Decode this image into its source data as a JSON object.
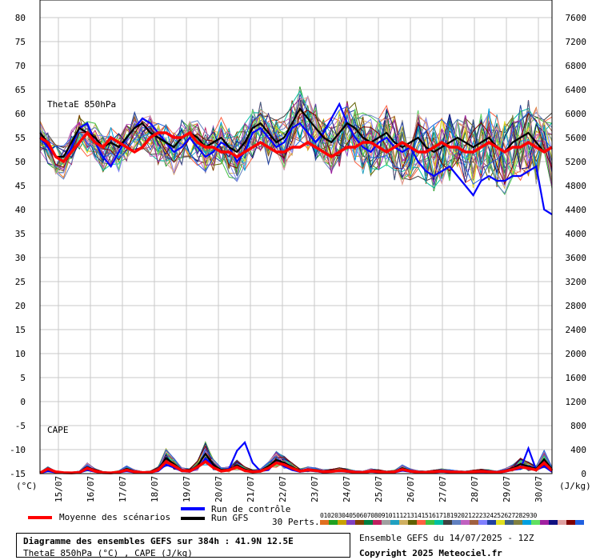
{
  "chart_data": {
    "type": "line",
    "title": "Diagramme des ensembles GEFS sur 384h : 41.9N 12.5E",
    "subtitle": "ThetaE 850hPa (°C) , CAPE (J/kg)",
    "left_axis": {
      "ticks": [
        "80",
        "75",
        "70",
        "65",
        "60",
        "55",
        "50",
        "45",
        "40",
        "35",
        "30",
        "25",
        "20",
        "15",
        "10",
        "5",
        "0",
        "-5",
        "-10",
        "-15"
      ],
      "ylim": [
        -15,
        80
      ],
      "unit_label": "(°C)"
    },
    "right_axis": {
      "ticks": [
        "7600",
        "7200",
        "6800",
        "6400",
        "6000",
        "5600",
        "5200",
        "4800",
        "4400",
        "4000",
        "3600",
        "3200",
        "2800",
        "2400",
        "2000",
        "1600",
        "1200",
        "800",
        "400",
        "0"
      ],
      "ylim": [
        0,
        7600
      ],
      "unit_label": "(J/kg)"
    },
    "x_ticks": [
      "15/07",
      "16/07",
      "17/07",
      "18/07",
      "19/07",
      "20/07",
      "21/07",
      "22/07",
      "23/07",
      "24/07",
      "25/07",
      "26/07",
      "27/07",
      "28/07",
      "29/07",
      "30/07"
    ],
    "x_step_hours": 6,
    "panel_labels": {
      "thetae": "ThetaE 850hPa",
      "cape": "CAPE"
    },
    "series": [
      {
        "name": "Moyenne des scénarios",
        "color": "#ff0000",
        "thetae": [
          55,
          54,
          51,
          50,
          52,
          54,
          56,
          54,
          53,
          55,
          54,
          53,
          52,
          53,
          55,
          56,
          56,
          55,
          55,
          56,
          54,
          53,
          53,
          52,
          52,
          51,
          52,
          53,
          54,
          53,
          52,
          52,
          53,
          53,
          54,
          53,
          52,
          51,
          52,
          53,
          53,
          54,
          54,
          53,
          52,
          53,
          54,
          53,
          52,
          52,
          53,
          54,
          53,
          53,
          52,
          52,
          53,
          54,
          53,
          52,
          53,
          53,
          54,
          53,
          52,
          53
        ],
        "cape": [
          10,
          80,
          30,
          15,
          12,
          20,
          90,
          40,
          15,
          12,
          25,
          60,
          30,
          18,
          20,
          60,
          200,
          130,
          50,
          40,
          110,
          200,
          100,
          40,
          60,
          110,
          50,
          30,
          40,
          90,
          180,
          150,
          90,
          40,
          60,
          50,
          30,
          35,
          50,
          40,
          25,
          20,
          40,
          30,
          20,
          30,
          70,
          40,
          25,
          20,
          30,
          40,
          30,
          25,
          20,
          30,
          35,
          30,
          20,
          40,
          70,
          110,
          90,
          60,
          180,
          50
        ]
      },
      {
        "name": "Run de contrôle",
        "color": "#0000ff",
        "thetae": [
          55,
          53,
          51,
          50,
          53,
          57,
          58,
          54,
          51,
          49,
          52,
          55,
          57,
          59,
          58,
          56,
          54,
          52,
          53,
          55,
          53,
          51,
          52,
          54,
          53,
          50,
          52,
          56,
          57,
          55,
          53,
          54,
          57,
          58,
          56,
          54,
          56,
          59,
          62,
          58,
          55,
          53,
          52,
          54,
          55,
          53,
          52,
          53,
          50,
          48,
          47,
          48,
          49,
          47,
          45,
          43,
          46,
          47,
          46,
          46,
          47,
          47,
          48,
          49,
          40,
          39
        ],
        "cape": [
          10,
          40,
          20,
          10,
          10,
          15,
          60,
          30,
          10,
          10,
          20,
          40,
          20,
          15,
          20,
          40,
          150,
          100,
          40,
          30,
          90,
          250,
          140,
          40,
          80,
          380,
          520,
          180,
          40,
          60,
          200,
          120,
          60,
          30,
          50,
          40,
          20,
          30,
          40,
          30,
          20,
          15,
          30,
          20,
          15,
          20,
          50,
          30,
          20,
          15,
          20,
          30,
          20,
          20,
          15,
          20,
          25,
          20,
          15,
          30,
          60,
          80,
          420,
          60,
          120,
          30
        ]
      },
      {
        "name": "Run GFS",
        "color": "#000000",
        "thetae": [
          56,
          54,
          51,
          51,
          54,
          57,
          56,
          55,
          53,
          54,
          53,
          55,
          57,
          58,
          56,
          55,
          54,
          53,
          55,
          56,
          55,
          53,
          54,
          55,
          53,
          52,
          54,
          57,
          58,
          56,
          54,
          55,
          58,
          61,
          59,
          57,
          55,
          54,
          56,
          58,
          57,
          55,
          54,
          55,
          56,
          54,
          53,
          54,
          55,
          53,
          52,
          53,
          54,
          55,
          54,
          53,
          54,
          55,
          53,
          52,
          54,
          55,
          56,
          54,
          52,
          53
        ],
        "cape": [
          15,
          70,
          25,
          12,
          15,
          25,
          110,
          50,
          20,
          15,
          30,
          80,
          40,
          20,
          25,
          70,
          260,
          160,
          60,
          50,
          130,
          330,
          150,
          60,
          70,
          140,
          70,
          40,
          50,
          120,
          230,
          180,
          110,
          50,
          70,
          60,
          40,
          45,
          60,
          50,
          30,
          25,
          50,
          40,
          25,
          35,
          90,
          50,
          30,
          25,
          35,
          50,
          40,
          30,
          25,
          35,
          45,
          40,
          25,
          50,
          90,
          160,
          120,
          80,
          240,
          70
        ]
      }
    ],
    "perturbations_label": "30 Perts.",
    "perturbations": [
      {
        "name": "01",
        "color": "#e07020"
      },
      {
        "name": "02",
        "color": "#20a020"
      },
      {
        "name": "03",
        "color": "#c8a000"
      },
      {
        "name": "04",
        "color": "#8040c0"
      },
      {
        "name": "05",
        "color": "#804000"
      },
      {
        "name": "06",
        "color": "#008040"
      },
      {
        "name": "07",
        "color": "#c02060"
      },
      {
        "name": "08",
        "color": "#a0a0a0"
      },
      {
        "name": "09",
        "color": "#20a0c0"
      },
      {
        "name": "10",
        "color": "#d0b060"
      },
      {
        "name": "11",
        "color": "#606000"
      },
      {
        "name": "12",
        "color": "#ff6040"
      },
      {
        "name": "13",
        "color": "#40c040"
      },
      {
        "name": "14",
        "color": "#00c0a0"
      },
      {
        "name": "15",
        "color": "#404040"
      },
      {
        "name": "16",
        "color": "#6080c0"
      },
      {
        "name": "17",
        "color": "#c060c0"
      },
      {
        "name": "18",
        "color": "#a06040"
      },
      {
        "name": "19",
        "color": "#8080ff"
      },
      {
        "name": "20",
        "color": "#2040a0"
      },
      {
        "name": "21",
        "color": "#e0e020"
      },
      {
        "name": "22",
        "color": "#406080"
      },
      {
        "name": "23",
        "color": "#808040"
      },
      {
        "name": "24",
        "color": "#00a0e0"
      },
      {
        "name": "25",
        "color": "#60e060"
      },
      {
        "name": "26",
        "color": "#a020a0"
      },
      {
        "name": "27",
        "color": "#101080"
      },
      {
        "name": "28",
        "color": "#e0a0a0"
      },
      {
        "name": "29",
        "color": "#800000"
      },
      {
        "name": "30",
        "color": "#2060e0"
      }
    ]
  },
  "info": {
    "title": "Diagramme des ensembles GEFS sur 384h : 41.9N 12.5E",
    "subtitle": "ThetaE 850hPa (°C) , CAPE (J/kg)",
    "ensemble": "Ensemble GEFS du 14/07/2025 - 12Z",
    "copyright": "Copyright 2025 Meteociel.fr"
  },
  "legend": {
    "mean": "Moyenne des scénarios",
    "control": "Run de contrôle",
    "gfs": "Run GFS",
    "colors": {
      "mean": "#ff0000",
      "control": "#0000ff",
      "gfs": "#000000"
    }
  }
}
